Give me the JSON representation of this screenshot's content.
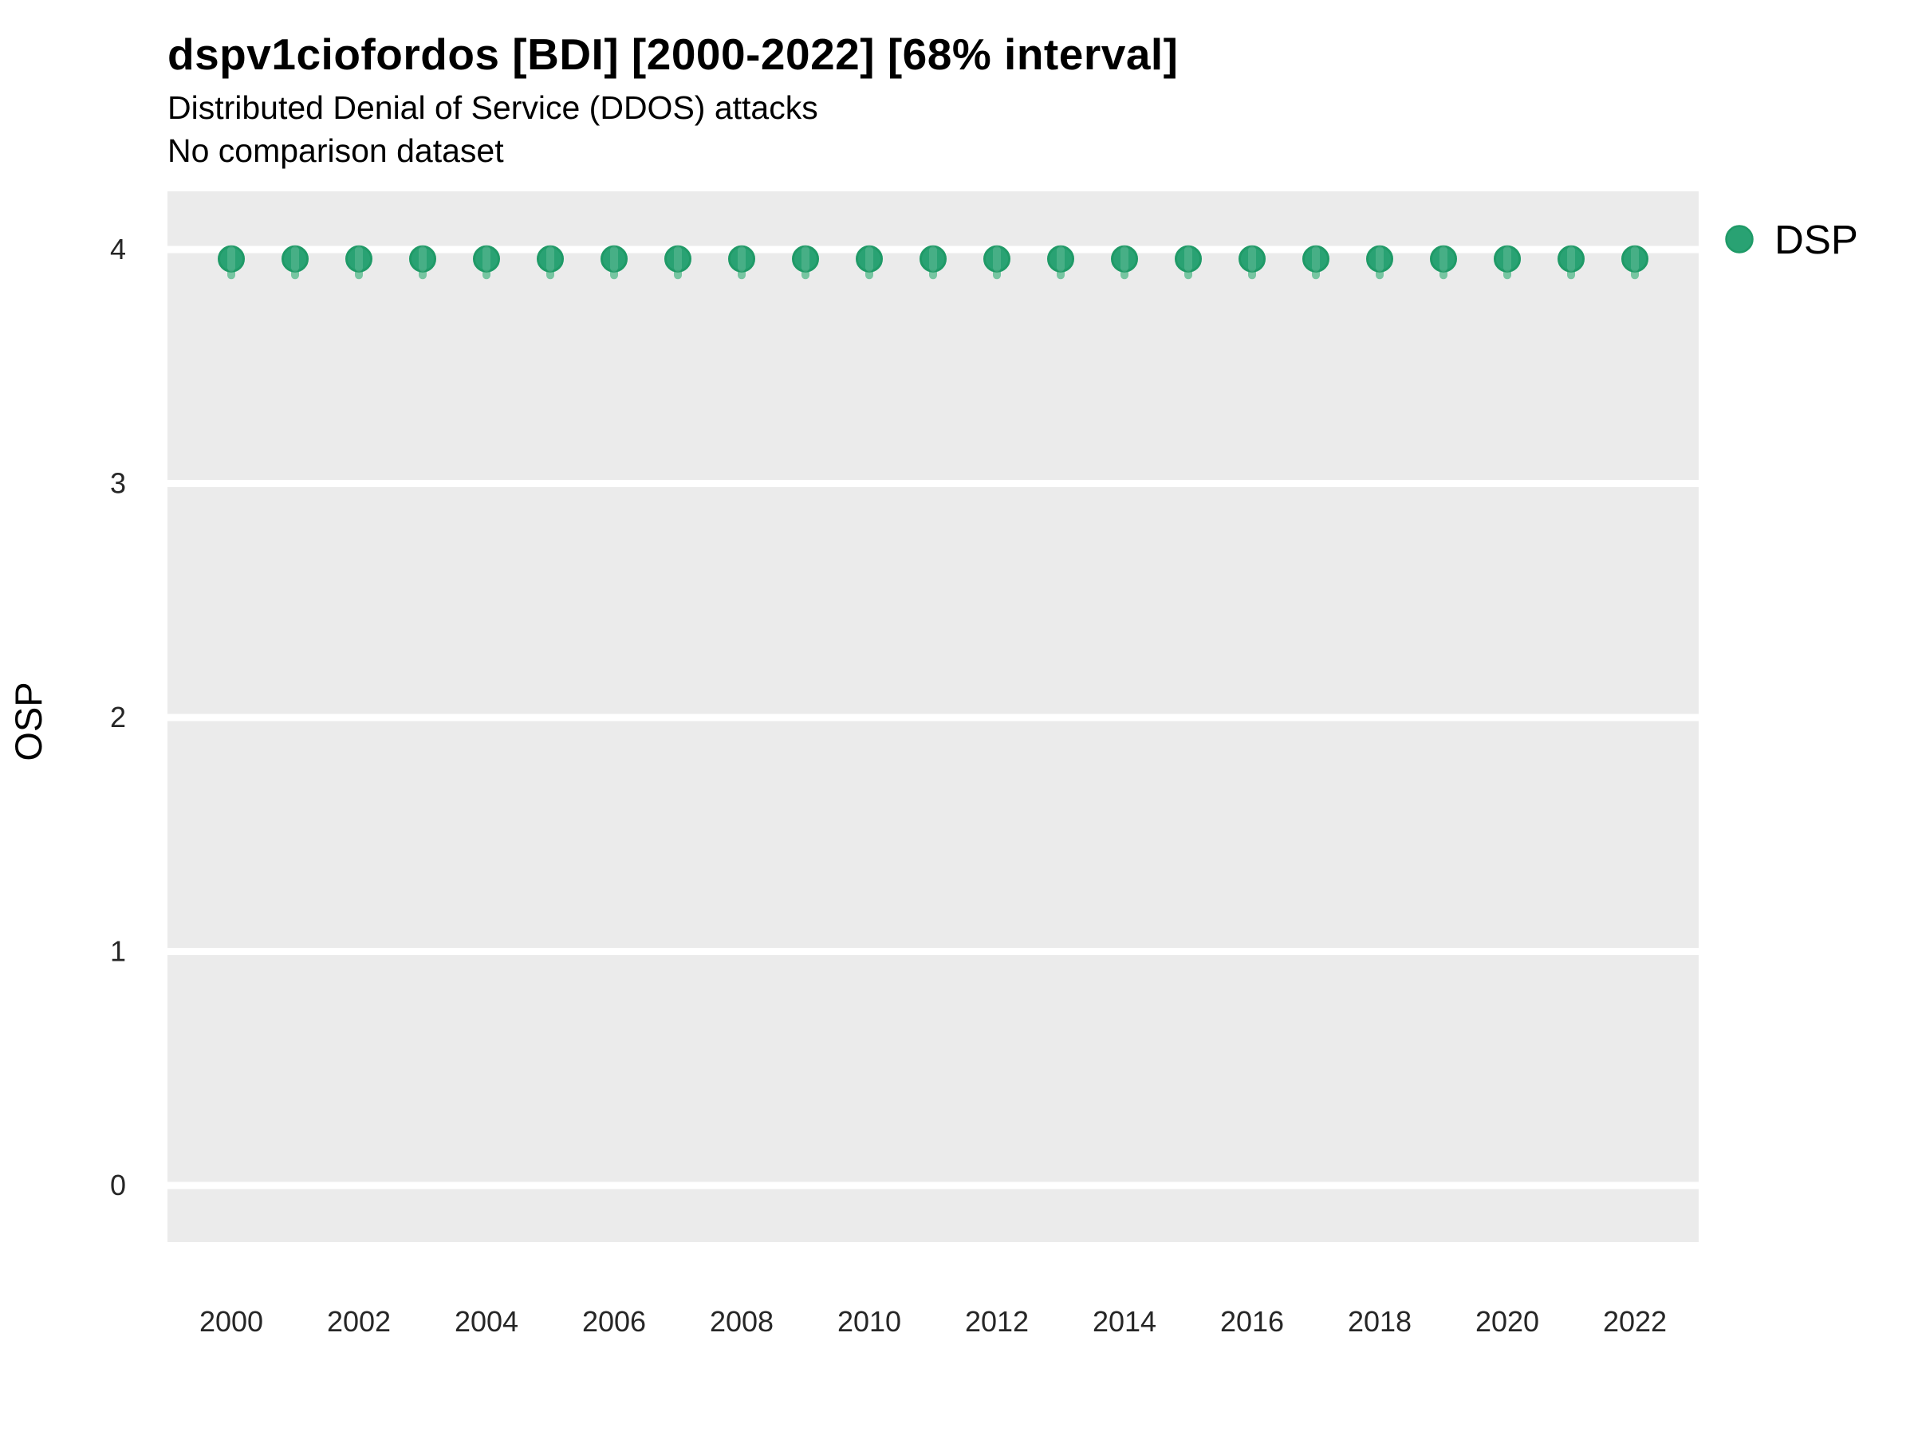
{
  "header": {
    "title": "dspv1ciofordos [BDI] [2000-2022] [68% interval]",
    "subtitle": "Distributed Denial of Service (DDOS) attacks",
    "note": "No comparison dataset"
  },
  "legend": {
    "position": "right",
    "items": [
      {
        "label": "DSP",
        "color": "#29A273"
      }
    ]
  },
  "chart_data": {
    "type": "scatter",
    "title": "dspv1ciofordos [BDI] [2000-2022] [68% interval]",
    "subtitle": "Distributed Denial of Service (DDOS) attacks",
    "note": "No comparison dataset",
    "xlabel": "",
    "ylabel": "OSP",
    "x": [
      2000,
      2001,
      2002,
      2003,
      2004,
      2005,
      2006,
      2007,
      2008,
      2009,
      2010,
      2011,
      2012,
      2013,
      2014,
      2015,
      2016,
      2017,
      2018,
      2019,
      2020,
      2021,
      2022
    ],
    "series": [
      {
        "name": "DSP",
        "values": [
          3.96,
          3.96,
          3.96,
          3.96,
          3.96,
          3.96,
          3.96,
          3.96,
          3.96,
          3.96,
          3.96,
          3.96,
          3.96,
          3.96,
          3.96,
          3.96,
          3.96,
          3.96,
          3.96,
          3.96,
          3.96,
          3.96,
          3.96
        ],
        "interval_68_low": [
          3.89,
          3.89,
          3.89,
          3.89,
          3.89,
          3.89,
          3.89,
          3.89,
          3.89,
          3.89,
          3.89,
          3.89,
          3.89,
          3.89,
          3.89,
          3.89,
          3.89,
          3.89,
          3.89,
          3.89,
          3.89,
          3.89,
          3.89
        ],
        "interval_68_high": [
          3.99,
          3.99,
          3.99,
          3.99,
          3.99,
          3.99,
          3.99,
          3.99,
          3.99,
          3.99,
          3.99,
          3.99,
          3.99,
          3.99,
          3.99,
          3.99,
          3.99,
          3.99,
          3.99,
          3.99,
          3.99,
          3.99,
          3.99
        ]
      }
    ],
    "xticks": [
      2000,
      2002,
      2004,
      2006,
      2008,
      2010,
      2012,
      2014,
      2016,
      2018,
      2020,
      2022
    ],
    "yticks": [
      0,
      1,
      2,
      3,
      4
    ],
    "ylim": [
      -0.25,
      4.3
    ],
    "grid": "horizontal-major-only",
    "legend_position": "right",
    "colors": {
      "point_fill": "#29A273",
      "point_border": "#1F9A67",
      "interval_line": "#77C5A1",
      "panel_bg": "#EBEBEB",
      "gridline": "#FFFFFF"
    }
  }
}
